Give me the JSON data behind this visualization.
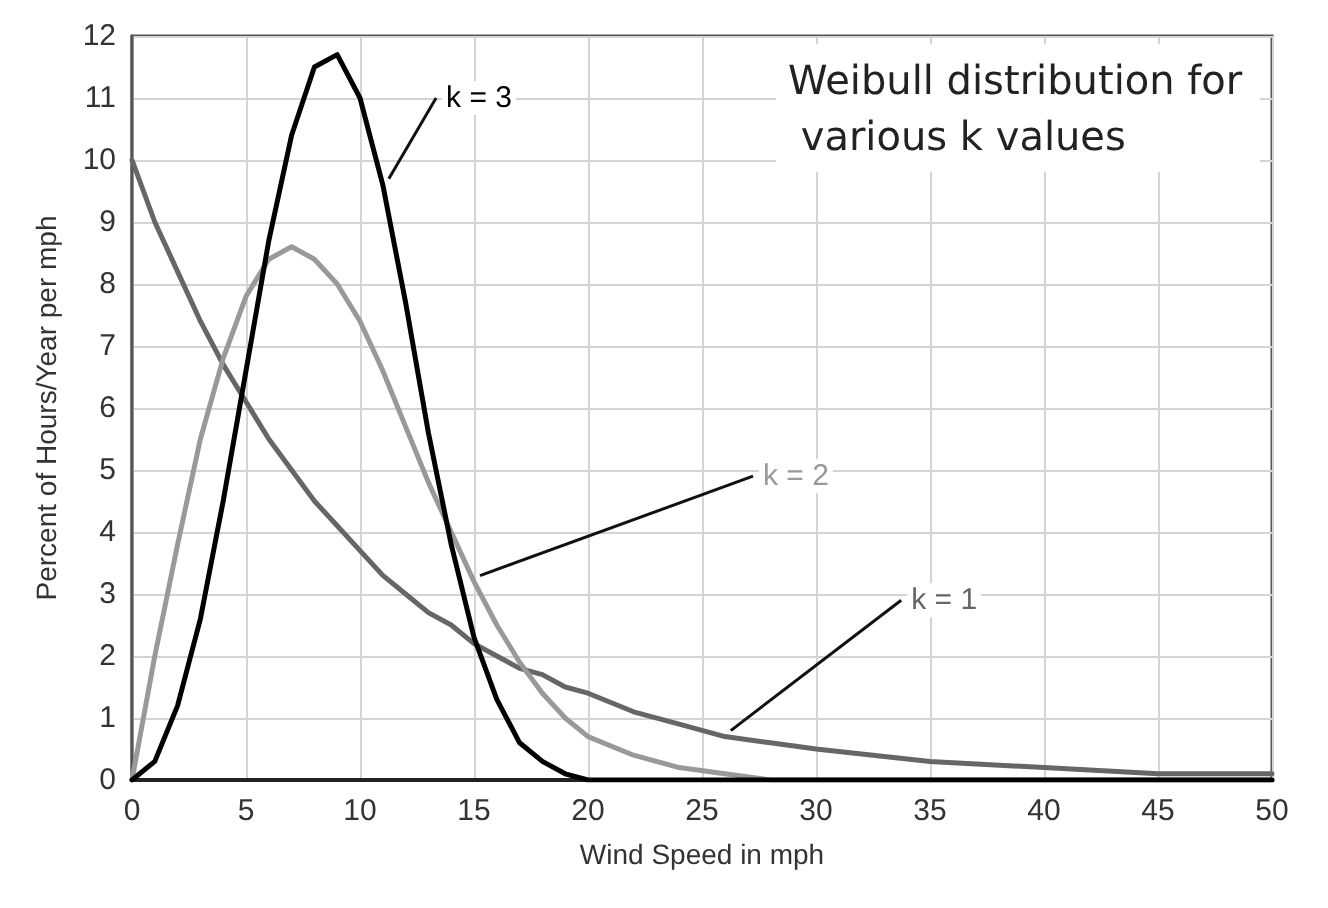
{
  "chart_data": {
    "type": "line",
    "title": "Weibull distribution for various k values",
    "xlabel": "Wind Speed in mph",
    "ylabel": "Percent of Hours/Year per mph",
    "x": [
      0,
      1,
      2,
      3,
      4,
      5,
      6,
      7,
      8,
      9,
      10,
      11,
      12,
      13,
      14,
      15,
      16,
      17,
      18,
      19,
      20,
      22,
      24,
      26,
      28,
      30,
      35,
      40,
      45,
      50
    ],
    "series": [
      {
        "name": "k = 1",
        "color": "#666666",
        "values": [
          10,
          9.0,
          8.2,
          7.4,
          6.7,
          6.1,
          5.5,
          5.0,
          4.5,
          4.1,
          3.7,
          3.3,
          3.0,
          2.7,
          2.5,
          2.2,
          2.0,
          1.8,
          1.7,
          1.5,
          1.4,
          1.1,
          0.9,
          0.7,
          0.6,
          0.5,
          0.3,
          0.2,
          0.1,
          0.1
        ]
      },
      {
        "name": "k = 2",
        "color": "#999999",
        "values": [
          0,
          2.0,
          3.8,
          5.5,
          6.8,
          7.8,
          8.4,
          8.6,
          8.4,
          8.0,
          7.4,
          6.6,
          5.7,
          4.8,
          4.0,
          3.2,
          2.5,
          1.9,
          1.4,
          1.0,
          0.7,
          0.4,
          0.2,
          0.1,
          0,
          0,
          0,
          0,
          0,
          0
        ]
      },
      {
        "name": "k = 3",
        "color": "#000000",
        "values": [
          0,
          0.3,
          1.2,
          2.6,
          4.5,
          6.6,
          8.7,
          10.4,
          11.5,
          11.7,
          11.0,
          9.6,
          7.7,
          5.6,
          3.8,
          2.3,
          1.3,
          0.6,
          0.3,
          0.1,
          0,
          0,
          0,
          0,
          0,
          0,
          0,
          0,
          0,
          0
        ]
      }
    ],
    "xlim": [
      0,
      50
    ],
    "xticks": [
      0,
      5,
      10,
      15,
      20,
      25,
      30,
      35,
      40,
      45,
      50
    ],
    "ylim": [
      0,
      12
    ],
    "yticks": [
      0,
      1,
      2,
      3,
      4,
      5,
      6,
      7,
      8,
      9,
      10,
      11,
      12
    ],
    "grid": true,
    "legend": false,
    "marker": "none",
    "line_style": "solid"
  }
}
